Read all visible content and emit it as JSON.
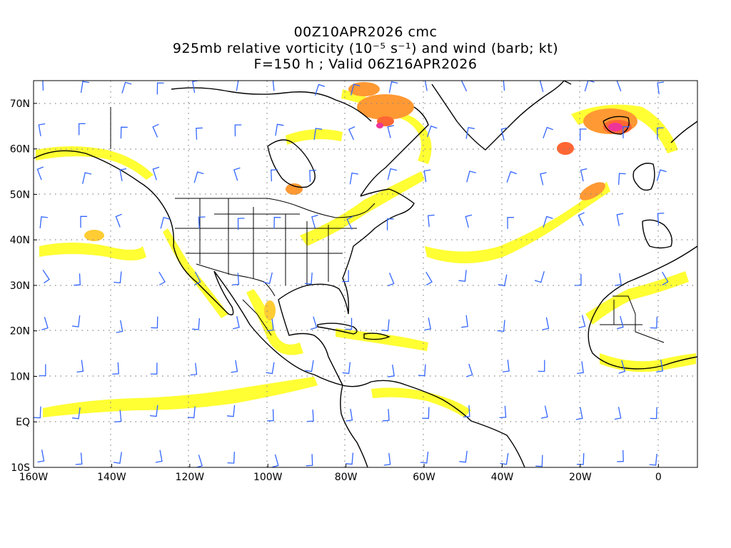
{
  "title": {
    "line1": "00Z10APR2026 cmc",
    "line2": "925mb relative vorticity (10⁻⁵ s⁻¹) and wind (barb; kt)",
    "line3": "F=150 h ; Valid 06Z16APR2026"
  },
  "axes": {
    "lon_range": [
      -160,
      10
    ],
    "lat_range": [
      -10,
      75
    ],
    "x_ticks": [
      "160W",
      "140W",
      "120W",
      "100W",
      "80W",
      "60W",
      "40W",
      "20W",
      "0"
    ],
    "y_ticks": [
      "70N",
      "60N",
      "50N",
      "40N",
      "30N",
      "20N",
      "10N",
      "EQ",
      "10S"
    ],
    "grid": "dotted"
  },
  "colors": {
    "light": "#ffff33",
    "medium": "#ffcc33",
    "high": "#ff9933",
    "higher": "#ff6633",
    "peak": "#ee3399",
    "barb": "#3366ff",
    "coast": "#000000"
  }
}
